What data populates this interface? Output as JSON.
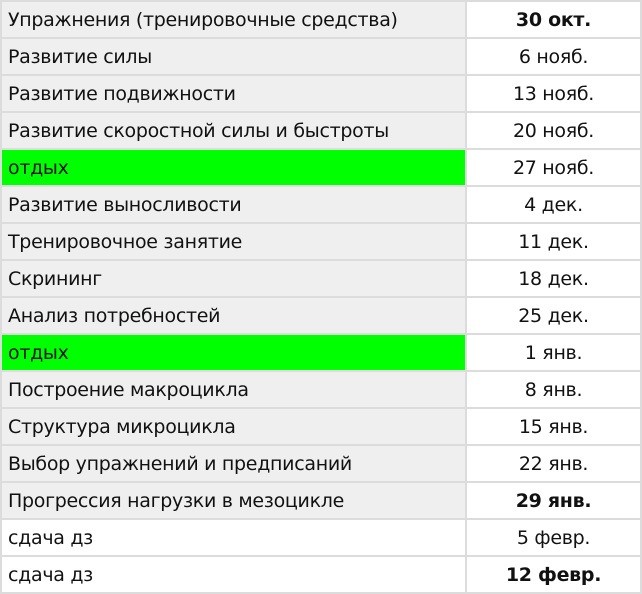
{
  "colors": {
    "rest_highlight": "#00ff00",
    "cell_gray": "#efefef",
    "grid": "#dcdcdc"
  },
  "rows": [
    {
      "topic": "Упражнения (тренировочные средства)",
      "date": "30 окт.",
      "bold_date": true,
      "bg": "gray"
    },
    {
      "topic": "Развитие силы",
      "date": "6 нояб.",
      "bold_date": false,
      "bg": "gray"
    },
    {
      "topic": "Развитие подвижности",
      "date": "13 нояб.",
      "bold_date": false,
      "bg": "gray"
    },
    {
      "topic": "Развитие скоростной силы и быстроты",
      "date": "20 нояб.",
      "bold_date": false,
      "bg": "gray"
    },
    {
      "topic": "отдых",
      "date": "27 нояб.",
      "bold_date": false,
      "bg": "green"
    },
    {
      "topic": "Развитие выносливости",
      "date": "4 дек.",
      "bold_date": false,
      "bg": "gray"
    },
    {
      "topic": "Тренировочное занятие",
      "date": "11 дек.",
      "bold_date": false,
      "bg": "gray"
    },
    {
      "topic": "Скрининг",
      "date": "18 дек.",
      "bold_date": false,
      "bg": "gray"
    },
    {
      "topic": "Анализ потребностей",
      "date": "25 дек.",
      "bold_date": false,
      "bg": "gray"
    },
    {
      "topic": "отдых",
      "date": "1 янв.",
      "bold_date": false,
      "bg": "green"
    },
    {
      "topic": "Построение макроцикла",
      "date": "8 янв.",
      "bold_date": false,
      "bg": "gray"
    },
    {
      "topic": "Структура микроцикла",
      "date": "15 янв.",
      "bold_date": false,
      "bg": "gray"
    },
    {
      "topic": "Выбор упражнений и предписаний",
      "date": "22 янв.",
      "bold_date": false,
      "bg": "gray"
    },
    {
      "topic": "Прогрессия нагрузки в мезоцикле",
      "date": "29 янв.",
      "bold_date": true,
      "bg": "gray"
    },
    {
      "topic": "сдача дз",
      "date": "5 февр.",
      "bold_date": false,
      "bg": "white"
    },
    {
      "topic": "сдача дз",
      "date": "12 февр.",
      "bold_date": true,
      "bg": "white"
    }
  ]
}
